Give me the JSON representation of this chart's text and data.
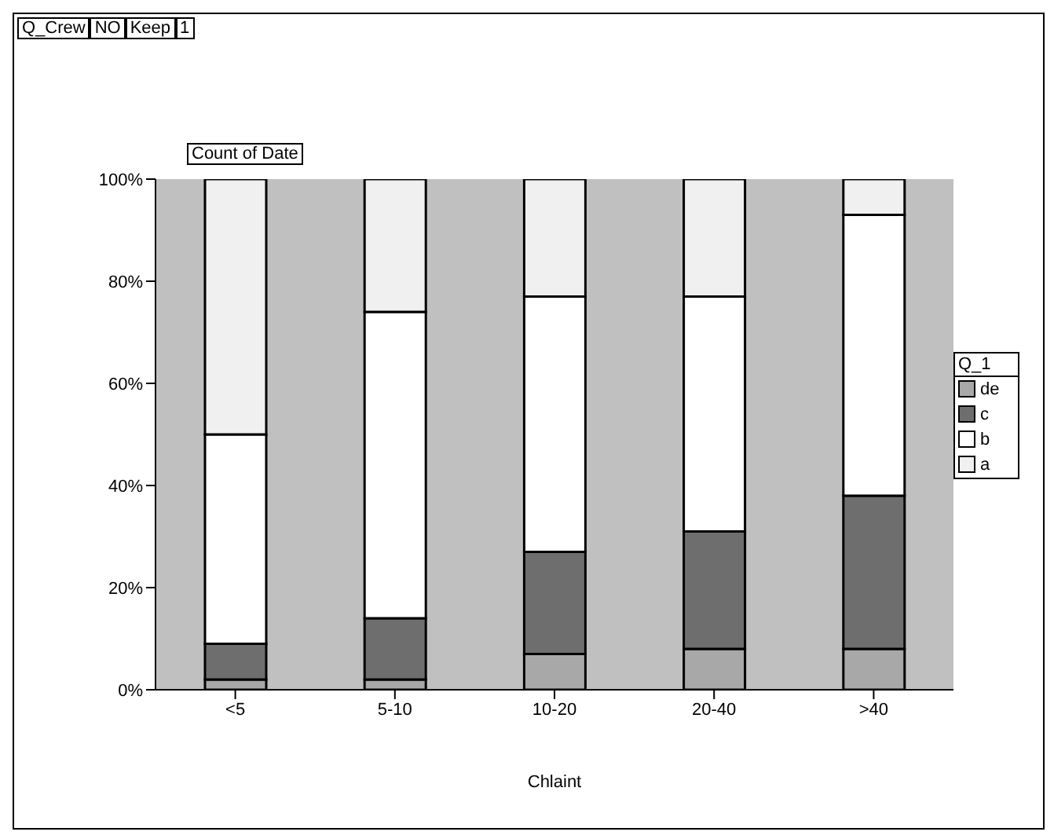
{
  "chart_data": {
    "type": "bar",
    "stacked": true,
    "xlabel": "Chlaint",
    "legend_title": "Q_1",
    "legend": "right",
    "annotations": [
      "Q_Crew",
      "NO",
      "Keep",
      "1",
      "Count of Date"
    ],
    "categories": [
      "<5",
      "5-10",
      "10-20",
      "20-40",
      ">40"
    ],
    "series": [
      {
        "name": "de",
        "color": "#a8a8a8",
        "values": [
          2,
          2,
          7,
          8,
          8
        ]
      },
      {
        "name": "c",
        "color": "#6e6e6e",
        "values": [
          7,
          12,
          20,
          23,
          30
        ]
      },
      {
        "name": "b",
        "color": "#ffffff",
        "values": [
          41,
          60,
          50,
          46,
          55
        ]
      },
      {
        "name": "a",
        "color": "#f0f0f0",
        "values": [
          50,
          26,
          23,
          23,
          7
        ]
      }
    ],
    "ylim": [
      0,
      100
    ],
    "yticks": [
      {
        "value": 0,
        "label": "0%"
      },
      {
        "value": 20,
        "label": "20%"
      },
      {
        "value": 40,
        "label": "40%"
      },
      {
        "value": 60,
        "label": "60%"
      },
      {
        "value": 80,
        "label": "80%"
      },
      {
        "value": 100,
        "label": "100%"
      }
    ]
  }
}
